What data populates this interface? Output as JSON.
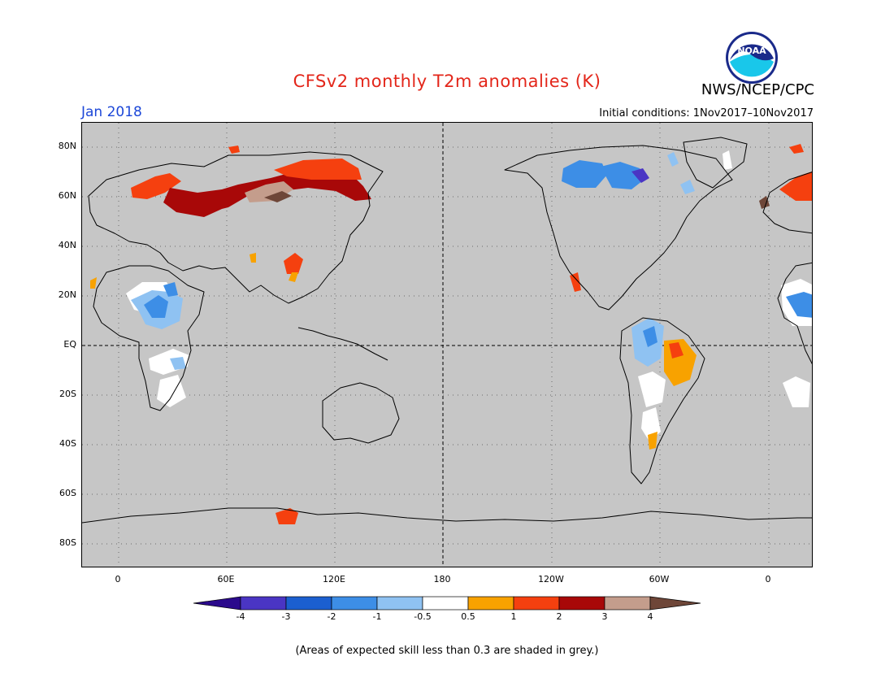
{
  "header": {
    "title": "CFSv2 monthly T2m anomalies (K)",
    "agency": "NWS/NCEP/CPC",
    "logo_text": "NOAA",
    "target_month": "Jan 2018",
    "initial_conditions": "Initial conditions: 1Nov2017–10Nov2017"
  },
  "map": {
    "background_color": "#c6c6c6",
    "lat_labels": [
      "80N",
      "60N",
      "40N",
      "20N",
      "EQ",
      "20S",
      "40S",
      "60S",
      "80S"
    ],
    "lon_labels": [
      "0",
      "60E",
      "120E",
      "180",
      "120W",
      "60W",
      "0"
    ]
  },
  "legend": {
    "bins": [
      {
        "range": "< -4",
        "color": "#2b0a8c"
      },
      {
        "range": "-4 to -3",
        "color": "#4a35c4"
      },
      {
        "range": "-3 to -2",
        "color": "#1b5fd0"
      },
      {
        "range": "-2 to -1",
        "color": "#3d8ee6"
      },
      {
        "range": "-1 to -0.5",
        "color": "#8fc2f2"
      },
      {
        "range": "-0.5 to 0.5",
        "color": "#ffffff"
      },
      {
        "range": "0.5 to 1",
        "color": "#f8a200"
      },
      {
        "range": "1 to 2",
        "color": "#f5400f"
      },
      {
        "range": "2 to 3",
        "color": "#a80808"
      },
      {
        "range": "3 to 4",
        "color": "#c49d8c"
      },
      {
        "range": "> 4",
        "color": "#6e4638"
      }
    ],
    "tick_labels": [
      "-4",
      "-3",
      "-2",
      "-1",
      "-0.5",
      "0.5",
      "1",
      "2",
      "3",
      "4"
    ]
  },
  "footnote": "(Areas of expected skill less than 0.3 are shaded in grey.)"
}
